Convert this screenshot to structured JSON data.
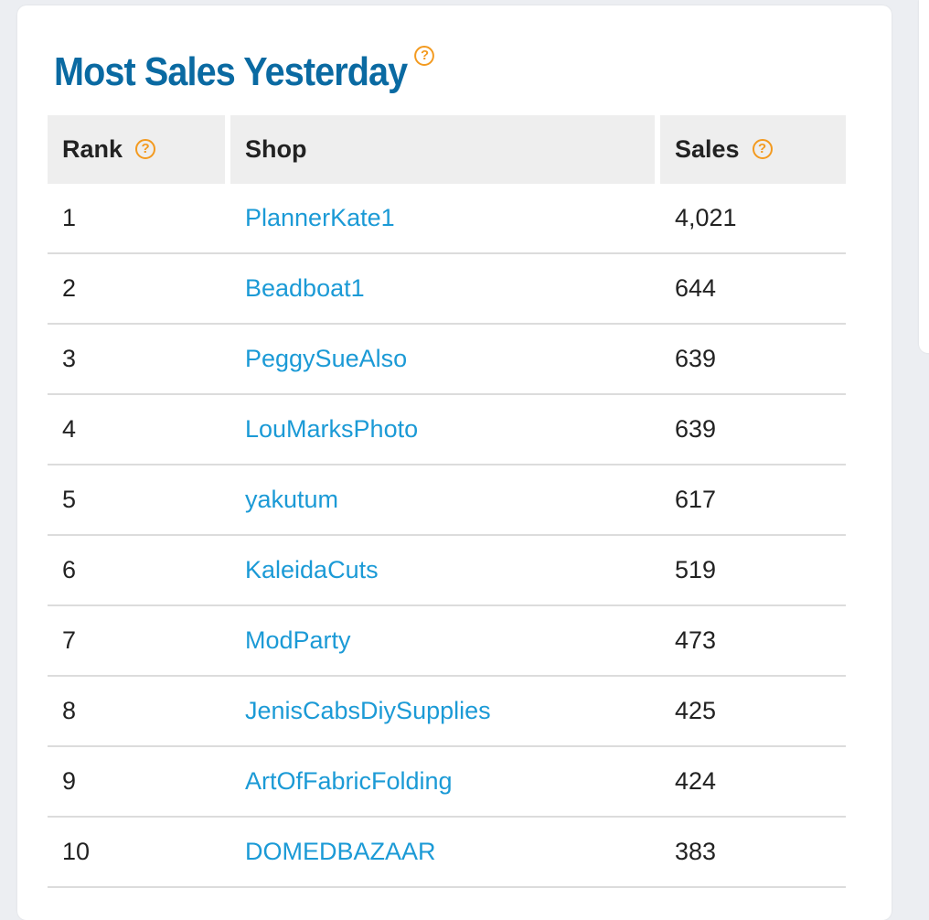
{
  "title": "Most Sales Yesterday",
  "help_icon": "?",
  "columns": {
    "rank": "Rank",
    "shop": "Shop",
    "sales": "Sales"
  },
  "rows": [
    {
      "rank": "1",
      "shop": "PlannerKate1",
      "sales": "4,021"
    },
    {
      "rank": "2",
      "shop": "Beadboat1",
      "sales": "644"
    },
    {
      "rank": "3",
      "shop": "PeggySueAlso",
      "sales": "639"
    },
    {
      "rank": "4",
      "shop": "LouMarksPhoto",
      "sales": "639"
    },
    {
      "rank": "5",
      "shop": "yakutum",
      "sales": "617"
    },
    {
      "rank": "6",
      "shop": "KaleidaCuts",
      "sales": "519"
    },
    {
      "rank": "7",
      "shop": "ModParty",
      "sales": "473"
    },
    {
      "rank": "8",
      "shop": "JenisCabsDiySupplies",
      "sales": "425"
    },
    {
      "rank": "9",
      "shop": "ArtOfFabricFolding",
      "sales": "424"
    },
    {
      "rank": "10",
      "shop": "DOMEDBAZAAR",
      "sales": "383"
    }
  ]
}
